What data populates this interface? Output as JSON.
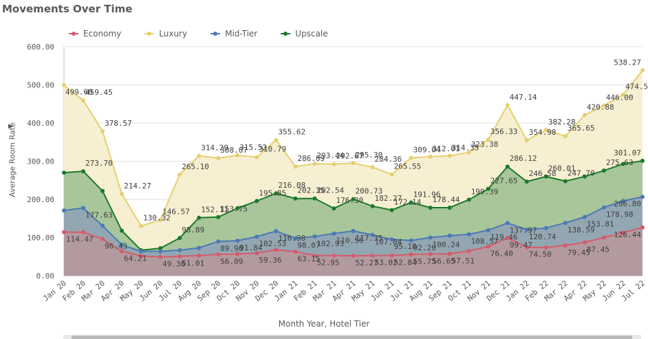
{
  "chart_data": {
    "type": "area",
    "title": "Movements Over Time",
    "xlabel": "Month Year, Hotel Tier",
    "ylabel": "Average Room Rate",
    "ylim": [
      0,
      600
    ],
    "yticks": [
      "0.00",
      "100.00",
      "200.00",
      "300.00",
      "400.00",
      "500.00",
      "600.00"
    ],
    "ytick_values": [
      0,
      100,
      200,
      300,
      400,
      500,
      600
    ],
    "categories": [
      "Jan 20",
      "Feb 20",
      "Mar 20",
      "Apr 20",
      "May 20",
      "Jun 20",
      "Jul 20",
      "Aug 20",
      "Sep 20",
      "Oct 20",
      "Nov 20",
      "Dec 20",
      "Jan 21",
      "Feb 21",
      "Mar 21",
      "Apr 21",
      "May 21",
      "Jun 21",
      "Jul 21",
      "Aug 21",
      "Sep 21",
      "Oct 21",
      "Nov 21",
      "Dec 21",
      "Jan 22",
      "Feb 22",
      "Mar 22",
      "Apr 22",
      "May 22",
      "Jun 22",
      "Jul 22"
    ],
    "series": [
      {
        "name": "Luxury",
        "color": "#e5cf6f",
        "fill": "#f7efd2",
        "values": [
          499.6,
          459.45,
          378.57,
          214.27,
          130.32,
          146.57,
          265.1,
          314.29,
          308.07,
          315.52,
          310.79,
          355.62,
          286.09,
          293.44,
          292.67,
          295.3,
          284.36,
          265.55,
          309.04,
          312.01,
          314.35,
          323.38,
          356.33,
          447.14,
          354.98,
          382.28,
          365.65,
          420.88,
          446.0,
          474.58,
          538.27
        ],
        "labeled": [
          true,
          true,
          true,
          true,
          true,
          true,
          true,
          true,
          true,
          true,
          true,
          true,
          true,
          true,
          true,
          true,
          true,
          true,
          true,
          true,
          true,
          true,
          true,
          true,
          true,
          true,
          true,
          true,
          true,
          true,
          true
        ]
      },
      {
        "name": "Upscale",
        "color": "#1a7a2a",
        "fill": "#a8c69a",
        "values": [
          270.0,
          273.7,
          222.0,
          118.0,
          67.0,
          72.0,
          98.89,
          152.11,
          153.75,
          177.0,
          195.85,
          216.08,
          202.35,
          202.54,
          176.3,
          200.73,
          182.27,
          172.14,
          191.96,
          178.44,
          178.44,
          199.39,
          227.65,
          286.12,
          246.58,
          260.01,
          247.7,
          260.0,
          275.63,
          293.0,
          301.07
        ],
        "labeled": [
          false,
          true,
          false,
          false,
          false,
          false,
          true,
          true,
          true,
          false,
          true,
          true,
          true,
          true,
          true,
          true,
          true,
          true,
          true,
          true,
          false,
          true,
          true,
          true,
          true,
          true,
          true,
          false,
          true,
          false,
          true
        ]
      },
      {
        "name": "Mid-Tier",
        "color": "#4a79b5",
        "fill": "#93a7b2",
        "values": [
          171.0,
          177.63,
          131.0,
          81.0,
          64.0,
          64.0,
          67.0,
          73.0,
          89.9,
          91.84,
          102.53,
          116.98,
          98.07,
          102.93,
          110.56,
          117.35,
          107.04,
          95.18,
          92.26,
          100.24,
          105.0,
          108.57,
          119.46,
          137.97,
          120.74,
          125.0,
          138.59,
          153.81,
          178.98,
          196.0,
          206.8
        ],
        "labeled": [
          false,
          true,
          false,
          false,
          false,
          false,
          false,
          false,
          true,
          true,
          true,
          true,
          true,
          true,
          true,
          true,
          true,
          true,
          true,
          true,
          false,
          true,
          true,
          true,
          true,
          false,
          true,
          true,
          true,
          false,
          true
        ]
      },
      {
        "name": "Economy",
        "color": "#d65b6c",
        "fill": "#b39a9f",
        "values": [
          114.47,
          114.0,
          96.43,
          64.21,
          52.0,
          49.36,
          51.01,
          53.0,
          56.09,
          57.0,
          59.36,
          68.0,
          63.15,
          52.95,
          53.0,
          52.27,
          53.02,
          52.84,
          55.75,
          56.65,
          57.51,
          65.0,
          76.4,
          99.47,
          74.5,
          74.0,
          79.45,
          87.45,
          100.0,
          113.0,
          126.44
        ],
        "labeled": [
          true,
          false,
          true,
          true,
          false,
          true,
          true,
          false,
          true,
          false,
          true,
          false,
          true,
          true,
          false,
          true,
          true,
          true,
          true,
          true,
          true,
          false,
          true,
          true,
          true,
          false,
          true,
          true,
          false,
          false,
          true
        ]
      }
    ],
    "legend": [
      "Economy",
      "Luxury",
      "Mid-Tier",
      "Upscale"
    ],
    "legend_position": "top-left",
    "grid": true
  }
}
